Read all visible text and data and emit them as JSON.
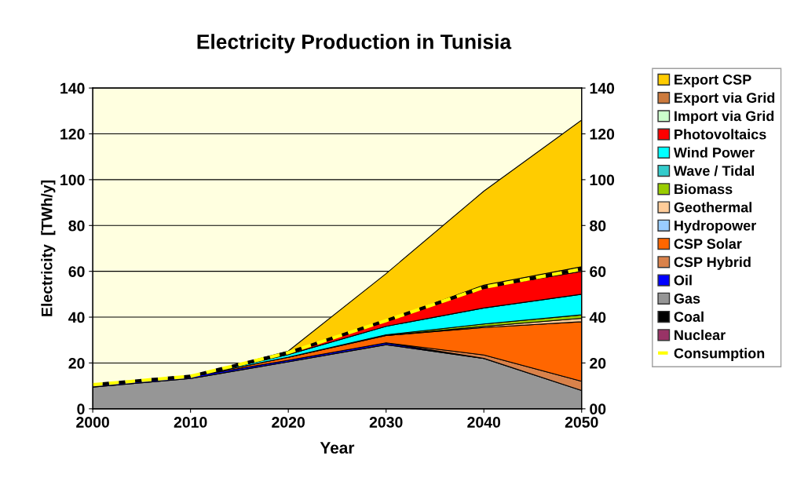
{
  "chart_data": {
    "type": "area",
    "stacked": true,
    "title": "Electricity Production in Tunisia",
    "xlabel": "Year",
    "ylabel": "Electricity  [TWh/y]",
    "x": [
      2000,
      2010,
      2020,
      2030,
      2040,
      2050
    ],
    "xlim": [
      2000,
      2050
    ],
    "xticks": [
      2000,
      2010,
      2020,
      2030,
      2040,
      2050
    ],
    "ylim": [
      0,
      140
    ],
    "yticks": [
      0,
      20,
      40,
      60,
      80,
      100,
      120,
      140
    ],
    "y2lim": [
      0,
      140
    ],
    "y2ticks": [
      {
        "value": 0,
        "label": "00"
      },
      20,
      40,
      60,
      80,
      100,
      120,
      140
    ],
    "grid": "y",
    "legend": "right",
    "series": [
      {
        "name": "Nuclear",
        "color": "#993366",
        "values": [
          null,
          null,
          null,
          null,
          null,
          null
        ]
      },
      {
        "name": "Coal",
        "color": "#000000",
        "values": [
          null,
          null,
          null,
          null,
          null,
          null
        ]
      },
      {
        "name": "Gas",
        "color": "#969696",
        "values": [
          9.5,
          13.2,
          20.5,
          28,
          22,
          8
        ]
      },
      {
        "name": "Oil",
        "color": "#0000ff",
        "values": [
          0.8,
          0.8,
          0.7,
          0.8,
          0,
          null
        ]
      },
      {
        "name": "CSP Hybrid",
        "color": "#d9824b",
        "values": [
          null,
          null,
          null,
          0,
          1.5,
          4
        ]
      },
      {
        "name": "CSP Solar",
        "color": "#ff6600",
        "values": [
          null,
          0,
          1.3,
          3.2,
          12,
          26
        ]
      },
      {
        "name": "Hydropower",
        "color": "#99ccff",
        "values": [
          null,
          null,
          null,
          null,
          null,
          null
        ]
      },
      {
        "name": "Geothermal",
        "color": "#ffcc99",
        "values": [
          null,
          null,
          null,
          0,
          0.5,
          1.5
        ]
      },
      {
        "name": "Biomass",
        "color": "#99cc00",
        "values": [
          null,
          null,
          0,
          0.3,
          1,
          1.5
        ]
      },
      {
        "name": "Wave / Tidal",
        "color": "#33cccc",
        "values": [
          null,
          null,
          null,
          null,
          null,
          null
        ]
      },
      {
        "name": "Wind Power",
        "color": "#00ffff",
        "values": [
          null,
          0,
          1.2,
          3.7,
          7,
          9
        ]
      },
      {
        "name": "Photovoltaics",
        "color": "#ff0000",
        "values": [
          null,
          0,
          0.5,
          2.5,
          9,
          10
        ]
      },
      {
        "name": "Import via Grid",
        "color": "#ccffcc",
        "values": [
          null,
          null,
          null,
          null,
          null,
          null
        ]
      },
      {
        "name": "Export via Grid",
        "color": "#cc7a3d",
        "values": [
          null,
          null,
          null,
          0,
          1,
          2
        ]
      },
      {
        "name": "Export CSP",
        "color": "#ffcc00",
        "values": [
          null,
          0,
          1,
          20.5,
          41,
          64
        ]
      },
      {
        "name": "Consumption",
        "type": "line",
        "line_style": "dashed",
        "color": "#ffff00",
        "values": [
          10.5,
          14.2,
          24.5,
          38.5,
          53,
          61
        ]
      }
    ]
  }
}
